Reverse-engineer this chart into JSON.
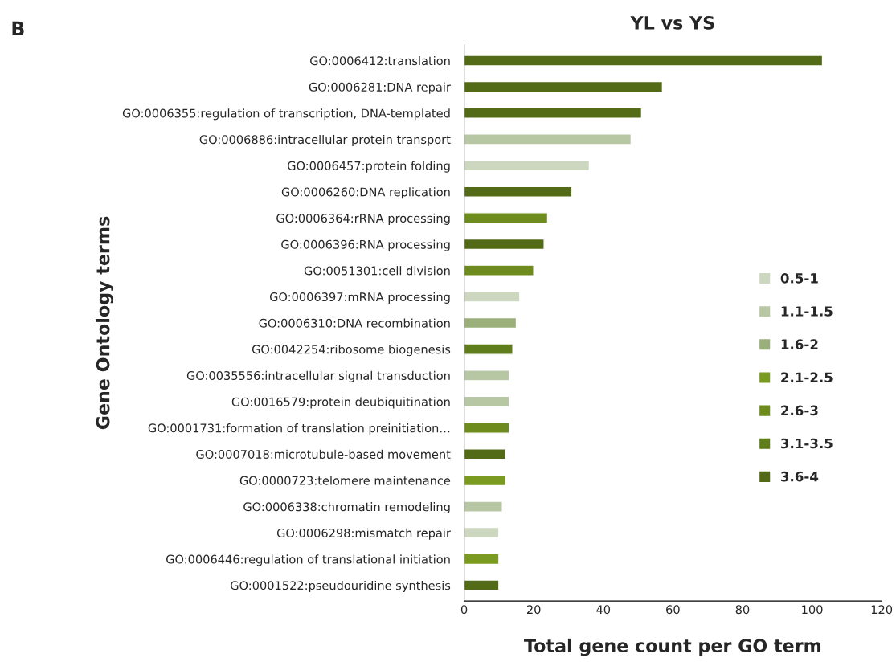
{
  "chart_data": {
    "type": "bar",
    "orientation": "horizontal",
    "title": "YL vs YS",
    "xlabel": "Total gene count per GO term",
    "ylabel": "Gene Ontology terms",
    "annotations": [
      "B"
    ],
    "categories": [
      "GO:0006412:translation",
      "GO:0006281:DNA repair",
      "GO:0006355:regulation of transcription, DNA-templated",
      "GO:0006886:intracellular protein transport",
      "GO:0006457:protein folding",
      "GO:0006260:DNA replication",
      "GO:0006364:rRNA processing",
      "GO:0006396:RNA processing",
      "GO:0051301:cell division",
      "GO:0006397:mRNA processing",
      "GO:0006310:DNA recombination",
      "GO:0042254:ribosome biogenesis",
      "GO:0035556:intracellular signal transduction",
      "GO:0016579:protein deubiquitination",
      "GO:0001731:formation of translation preinitiation…",
      "GO:0007018:microtubule-based movement",
      "GO:0000723:telomere maintenance",
      "GO:0006338:chromatin remodeling",
      "GO:0006298:mismatch repair",
      "GO:0006446:regulation of translational initiation",
      "GO:0001522:pseudouridine synthesis"
    ],
    "series": [
      {
        "name": "0.5-1",
        "color": "#cdd7c0",
        "values": [
          null,
          null,
          null,
          null,
          36,
          null,
          null,
          null,
          null,
          16,
          null,
          null,
          null,
          null,
          null,
          null,
          null,
          null,
          10,
          null,
          null
        ]
      },
      {
        "name": "1.1-1.5",
        "color": "#b7c7a3",
        "values": [
          null,
          null,
          null,
          48,
          null,
          null,
          null,
          null,
          null,
          null,
          null,
          null,
          13,
          13,
          null,
          null,
          null,
          11,
          null,
          null,
          null
        ]
      },
      {
        "name": "1.6-2",
        "color": "#9aaf79",
        "values": [
          null,
          null,
          null,
          null,
          null,
          null,
          null,
          null,
          null,
          null,
          15,
          null,
          null,
          null,
          null,
          null,
          null,
          null,
          null,
          null,
          null
        ]
      },
      {
        "name": "2.1-2.5",
        "color": "#7a9a22",
        "values": [
          null,
          null,
          null,
          null,
          null,
          null,
          null,
          null,
          null,
          null,
          null,
          null,
          null,
          null,
          null,
          null,
          12,
          null,
          null,
          10,
          null
        ]
      },
      {
        "name": "2.6-3",
        "color": "#6e8c1e",
        "values": [
          null,
          null,
          null,
          null,
          null,
          null,
          24,
          null,
          20,
          null,
          null,
          null,
          null,
          null,
          13,
          null,
          null,
          null,
          null,
          null,
          null
        ]
      },
      {
        "name": "3.1-3.5",
        "color": "#5f7d1a",
        "values": [
          null,
          null,
          null,
          null,
          null,
          null,
          null,
          null,
          null,
          null,
          null,
          14,
          null,
          null,
          null,
          null,
          null,
          null,
          null,
          null,
          null
        ]
      },
      {
        "name": "3.6-4",
        "color": "#536a16",
        "values": [
          103,
          57,
          51,
          null,
          null,
          31,
          null,
          23,
          null,
          null,
          null,
          null,
          null,
          null,
          null,
          12,
          null,
          null,
          null,
          null,
          10
        ]
      }
    ],
    "xlim": [
      0,
      120
    ],
    "xticks": [
      0,
      20,
      40,
      60,
      80,
      100,
      120
    ],
    "legend": "right",
    "grid": false
  }
}
